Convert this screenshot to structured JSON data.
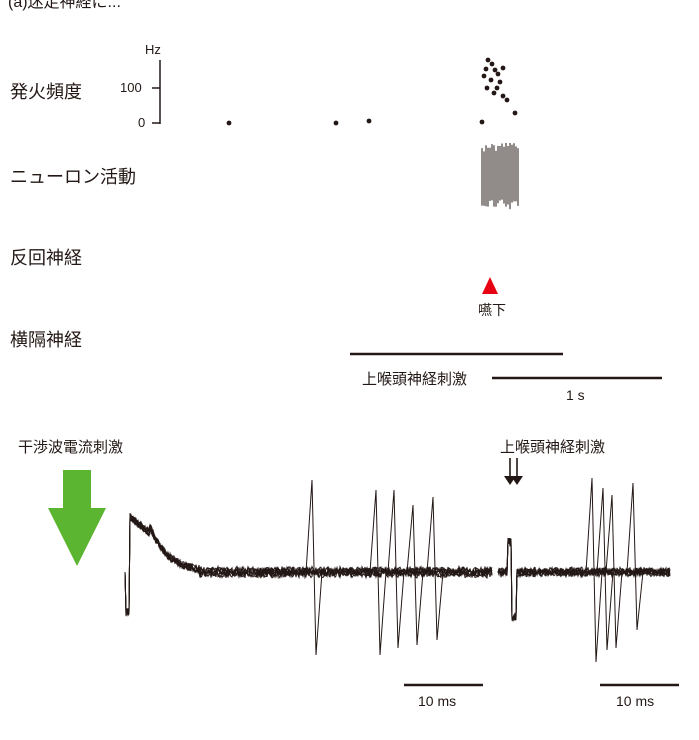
{
  "header": {
    "partial_text": "(a)迷走神経に..."
  },
  "upper_panel": {
    "labels": {
      "firing_rate": "発火頻度",
      "neuron_activity": "ニューロン活動",
      "recurrent_nerve": "反回神経",
      "phrenic_nerve": "横隔神経"
    },
    "freq_axis": {
      "unit": "Hz",
      "tick_high": "100",
      "tick_low": "0"
    },
    "swallow_label": "嚥下",
    "stim_label": "上喉頭神経刺激",
    "scale_label": "1 s",
    "colors": {
      "trace": "#231815",
      "marker": "#e60012"
    }
  },
  "lower_panel": {
    "ifc_label": "干渉波電流刺激",
    "sln_label": "上喉頭神経刺激",
    "scale_label_left": "10 ms",
    "scale_label_right": "10 ms",
    "colors": {
      "arrow": "#5cb531",
      "trace": "#231815"
    }
  }
}
